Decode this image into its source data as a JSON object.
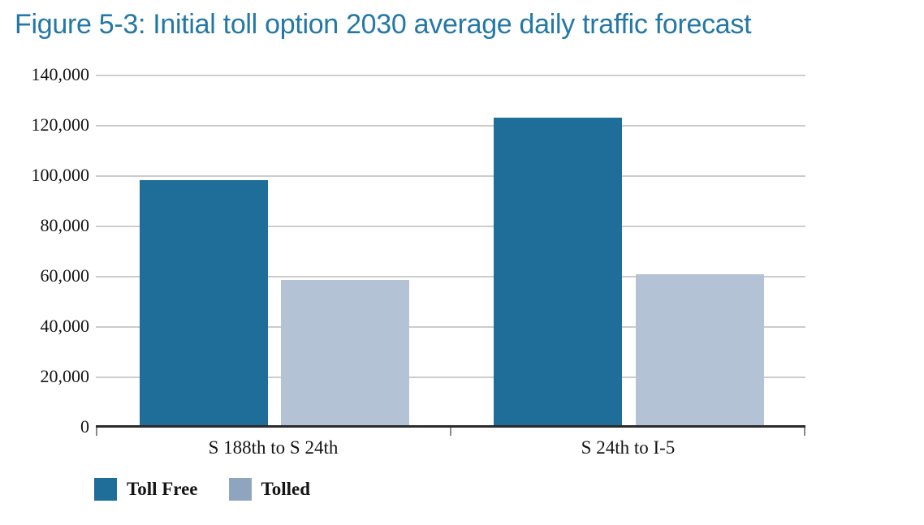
{
  "figure": {
    "title": "Figure 5-3: Initial toll option 2030 average daily traffic forecast",
    "title_color": "#2478A6"
  },
  "y_axis": {
    "tick_labels": [
      "140,000",
      "120,000",
      "100,000",
      "80,000",
      "60,000",
      "40,000",
      "20,000",
      "0"
    ]
  },
  "legend": {
    "items": [
      {
        "label": "Toll Free",
        "color": "#1E6E99"
      },
      {
        "label": "Tolled",
        "color": "#8FA4BF"
      }
    ]
  },
  "colors": {
    "toll_free_bar": "#1E6E99",
    "tolled_bar": "#B3C2D4",
    "gridline": "#CCCCCC",
    "axis": "#2B2B2B"
  },
  "chart_data": {
    "type": "bar",
    "categories": [
      "S 188th to S 24th",
      "S 24th to I-5"
    ],
    "series": [
      {
        "name": "Toll Free",
        "color": "#1E6E99",
        "values": [
          98000,
          123000
        ]
      },
      {
        "name": "Tolled",
        "color": "#B3C2D4",
        "values": [
          58500,
          60500
        ]
      }
    ],
    "title": "Figure 5-3: Initial toll option 2030 average daily traffic forecast",
    "xlabel": "",
    "ylabel": "",
    "ylim": [
      0,
      140000
    ],
    "ytick_interval": 20000,
    "grid": "horizontal",
    "legend_position": "bottom-left"
  }
}
